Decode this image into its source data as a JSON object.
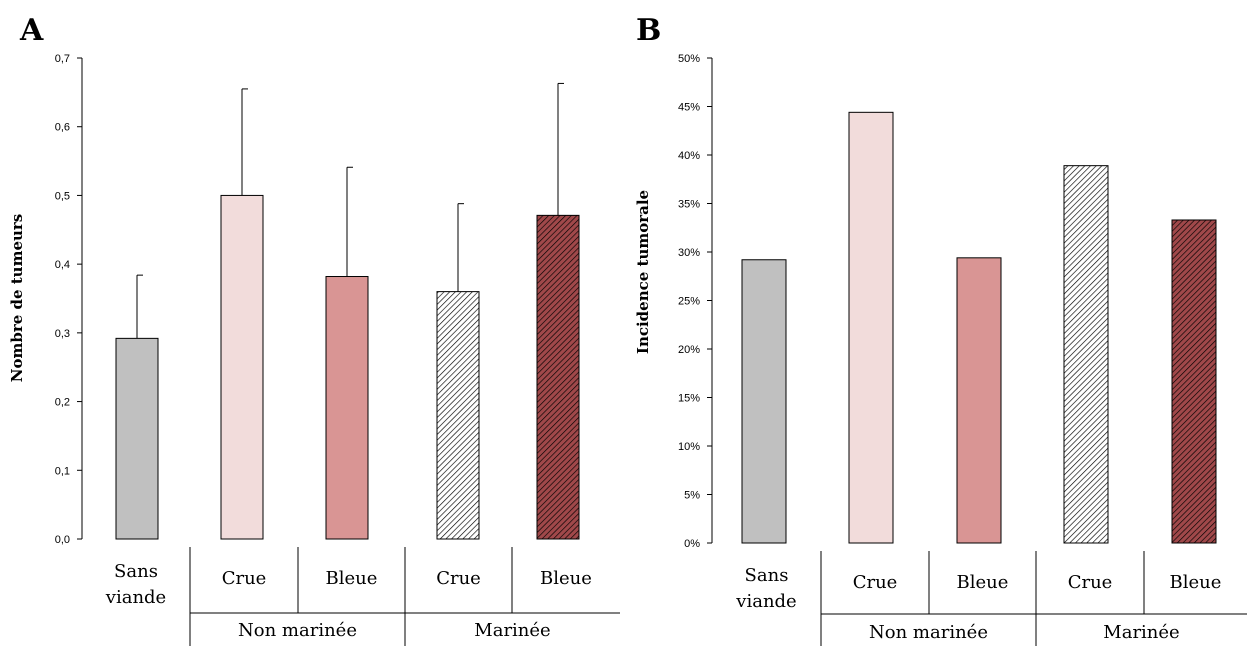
{
  "colors": {
    "sans_viande": "#c0c0c0",
    "crue": "#f2dcdb",
    "bleue": "#d99594",
    "hatch_light_bg": "#ffffff",
    "hatch_dark_bg": "#a0484a",
    "line": "#000000"
  },
  "chart_data": [
    {
      "panel": "A",
      "type": "bar",
      "ylabel": "Nombre de tumeurs",
      "ylim": [
        0,
        0.7
      ],
      "yticks": [
        "0,0",
        "0,1",
        "0,2",
        "0,3",
        "0,4",
        "0,5",
        "0,6",
        "0,7"
      ],
      "categories": [
        "Sans viande",
        "Crue",
        "Bleue",
        "Crue",
        "Bleue"
      ],
      "values": [
        0.292,
        0.5,
        0.382,
        0.36,
        0.471
      ],
      "errors": [
        0.092,
        0.155,
        0.159,
        0.128,
        0.192
      ],
      "category_labels": [
        {
          "lines": [
            "Sans",
            "viande"
          ]
        },
        {
          "lines": [
            "Crue"
          ]
        },
        {
          "lines": [
            "Bleue"
          ]
        },
        {
          "lines": [
            "Crue"
          ]
        },
        {
          "lines": [
            "Bleue"
          ]
        }
      ],
      "groups": [
        "Non marinée",
        "Marinée"
      ],
      "fills": [
        "sans_viande",
        "crue",
        "bleue",
        "hatch-light",
        "hatch-dark"
      ]
    },
    {
      "panel": "B",
      "type": "bar",
      "ylabel": "Incidence tumorale",
      "ylim": [
        0,
        50
      ],
      "yticks": [
        "0%",
        "5%",
        "10%",
        "15%",
        "20%",
        "25%",
        "30%",
        "35%",
        "40%",
        "45%",
        "50%"
      ],
      "categories": [
        "Sans viande",
        "Crue",
        "Bleue",
        "Crue",
        "Bleue"
      ],
      "values": [
        29.2,
        44.4,
        29.4,
        38.9,
        33.3
      ],
      "category_labels": [
        {
          "lines": [
            "Sans",
            "viande"
          ]
        },
        {
          "lines": [
            "Crue"
          ]
        },
        {
          "lines": [
            "Bleue"
          ]
        },
        {
          "lines": [
            "Crue"
          ]
        },
        {
          "lines": [
            "Bleue"
          ]
        }
      ],
      "groups": [
        "Non marinée",
        "Marinée"
      ],
      "fills": [
        "sans_viande",
        "crue",
        "bleue",
        "hatch-light",
        "hatch-dark"
      ]
    }
  ]
}
